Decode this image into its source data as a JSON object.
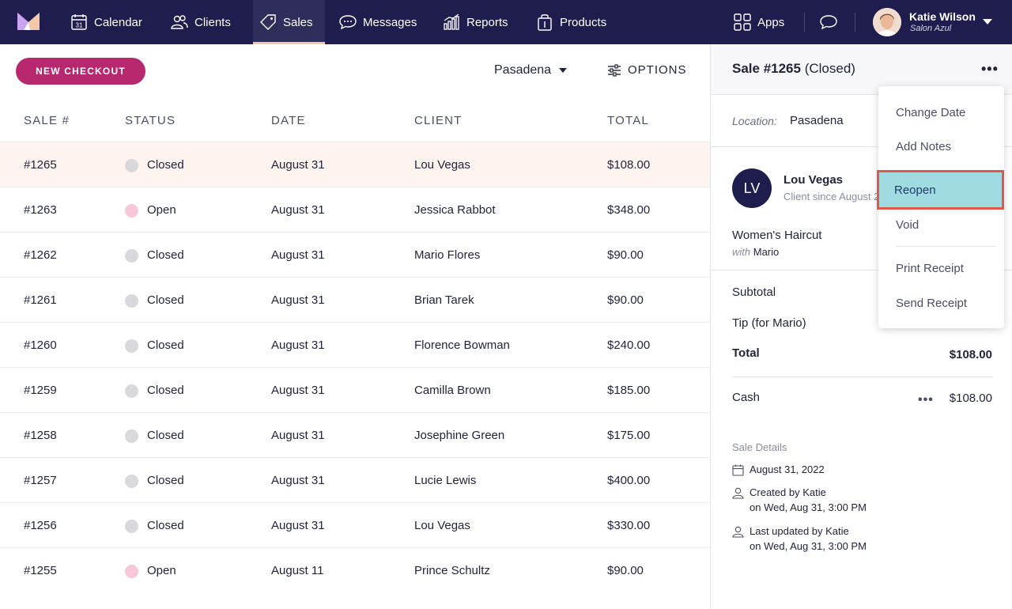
{
  "nav": {
    "items": [
      {
        "label": "Calendar",
        "icon": "calendar-icon"
      },
      {
        "label": "Clients",
        "icon": "clients-icon"
      },
      {
        "label": "Sales",
        "icon": "sales-tag-icon",
        "active": true
      },
      {
        "label": "Messages",
        "icon": "messages-icon"
      },
      {
        "label": "Reports",
        "icon": "reports-icon"
      },
      {
        "label": "Products",
        "icon": "products-icon"
      }
    ],
    "apps_label": "Apps",
    "calendar_day": "31",
    "user": {
      "name": "Katie Wilson",
      "salon": "Salon Azul"
    },
    "colors": {
      "nav_bg": "#1f1d4d",
      "accent": "#b8286e",
      "active_underline": "#f3c8a8"
    }
  },
  "toolbar": {
    "new_checkout_label": "NEW CHECKOUT",
    "location": "Pasadena",
    "options_label": "OPTIONS"
  },
  "table": {
    "headers": {
      "sale": "SALE #",
      "status": "STATUS",
      "date": "DATE",
      "client": "CLIENT",
      "total": "TOTAL"
    },
    "rows": [
      {
        "sale": "#1265",
        "status": "Closed",
        "date": "August 31",
        "client": "Lou Vegas",
        "total": "$108.00"
      },
      {
        "sale": "#1263",
        "status": "Open",
        "date": "August 31",
        "client": "Jessica Rabbot",
        "total": "$348.00"
      },
      {
        "sale": "#1262",
        "status": "Closed",
        "date": "August 31",
        "client": "Mario Flores",
        "total": "$90.00"
      },
      {
        "sale": "#1261",
        "status": "Closed",
        "date": "August 31",
        "client": "Brian Tarek",
        "total": "$90.00"
      },
      {
        "sale": "#1260",
        "status": "Closed",
        "date": "August 31",
        "client": "Florence Bowman",
        "total": "$240.00"
      },
      {
        "sale": "#1259",
        "status": "Closed",
        "date": "August 31",
        "client": "Camilla Brown",
        "total": "$185.00"
      },
      {
        "sale": "#1258",
        "status": "Closed",
        "date": "August 31",
        "client": "Josephine Green",
        "total": "$175.00"
      },
      {
        "sale": "#1257",
        "status": "Closed",
        "date": "August 31",
        "client": "Lucie Lewis",
        "total": "$400.00"
      },
      {
        "sale": "#1256",
        "status": "Closed",
        "date": "August 31",
        "client": "Lou Vegas",
        "total": "$330.00"
      },
      {
        "sale": "#1255",
        "status": "Open",
        "date": "August 11",
        "client": "Prince Schultz",
        "total": "$90.00"
      }
    ],
    "status_colors": {
      "Closed": "#d9d9dd",
      "Open": "#f7c6d9"
    }
  },
  "panel": {
    "sale_number": "Sale #1265",
    "sale_status": "(Closed)",
    "location_label": "Location:",
    "location_value": "Pasadena",
    "client_initials": "LV",
    "client_name": "Lou Vegas",
    "client_since": "Client since August 2",
    "item_name": "Women's Haircut",
    "item_with_label": "with",
    "item_with_name": "Mario",
    "subtotal_label": "Subtotal",
    "tip_label": "Tip (for Mario)",
    "total_label": "Total",
    "total_value": "$108.00",
    "payment_method": "Cash",
    "payment_value": "$108.00",
    "details_title": "Sale Details",
    "detail_date": "August 31, 2022",
    "created_line1": "Created by Katie",
    "created_line2": "on Wed, Aug 31, 3:00 PM",
    "updated_line1": "Last updated by Katie",
    "updated_line2": "on Wed, Aug 31, 3:00 PM"
  },
  "menu": {
    "items": [
      "Change Date",
      "Add Notes",
      "Reopen",
      "Void",
      "Print Receipt",
      "Send Receipt"
    ],
    "highlighted": "Reopen"
  }
}
